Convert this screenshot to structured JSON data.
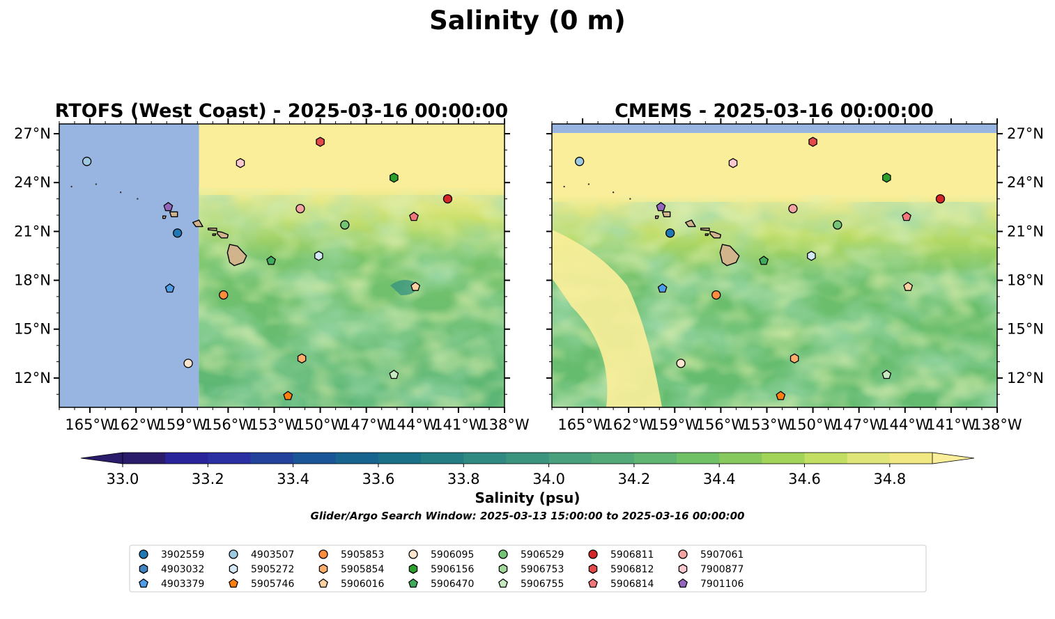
{
  "figure": {
    "title": "Salinity (0 m)",
    "panels": [
      {
        "title": "RTOFS (West Coast) - 2025-03-16 00:00:00"
      },
      {
        "title": "CMEMS - 2025-03-16 00:00:00"
      }
    ],
    "colorbar": {
      "label": "Salinity (psu)",
      "note": "Glider/Argo Search Window: 2025-03-13 15:00:00 to 2025-03-16 00:00:00",
      "ticks": [
        "33.0",
        "33.2",
        "33.4",
        "33.6",
        "33.8",
        "34.0",
        "34.2",
        "34.4",
        "34.6",
        "34.8"
      ],
      "range": [
        33.0,
        34.9
      ],
      "extend": "both",
      "colors": [
        "#2b1b6b",
        "#2a249a",
        "#2a2fa2",
        "#22429b",
        "#1a5597",
        "#17658f",
        "#1a7187",
        "#257d84",
        "#308a82",
        "#3b947e",
        "#48a07c",
        "#53aa78",
        "#60b572",
        "#70c066",
        "#88c95d",
        "#a2d459",
        "#c2de63",
        "#e0e57a",
        "#f2e883"
      ],
      "under_color": "#2b1b6b",
      "over_color": "#fbee9a"
    },
    "map": {
      "lon_range": [
        -167,
        -138
      ],
      "lat_range": [
        10.2,
        27.6
      ],
      "xticks": [
        "165°W",
        "162°W",
        "159°W",
        "156°W",
        "153°W",
        "150°W",
        "147°W",
        "144°W",
        "141°W",
        "138°W"
      ],
      "yticks": [
        "27°N",
        "24°N",
        "21°N",
        "18°N",
        "15°N",
        "12°N"
      ],
      "ocean_mask_color": "#97b5e0",
      "land_color": "#d2b48c",
      "rtofs_domain_west_edge_lon": -157.9
    },
    "legend": {
      "items": [
        {
          "id": "3902559",
          "marker": "circle",
          "color": "#1f77b4"
        },
        {
          "id": "4903032",
          "marker": "hexagon",
          "color": "#3d84c2"
        },
        {
          "id": "4903379",
          "marker": "pentagon",
          "color": "#4d9ee6"
        },
        {
          "id": "4903507",
          "marker": "circle",
          "color": "#9ecae1"
        },
        {
          "id": "5905272",
          "marker": "hexagon",
          "color": "#d4e9f8"
        },
        {
          "id": "5905746",
          "marker": "pentagon",
          "color": "#ff7f0e"
        },
        {
          "id": "5905853",
          "marker": "circle",
          "color": "#fd8d3c"
        },
        {
          "id": "5905854",
          "marker": "hexagon",
          "color": "#fdae6b"
        },
        {
          "id": "5906016",
          "marker": "pentagon",
          "color": "#fdd0a2"
        },
        {
          "id": "5906095",
          "marker": "circle",
          "color": "#fee6ce"
        },
        {
          "id": "5906156",
          "marker": "hexagon",
          "color": "#2ca02c"
        },
        {
          "id": "5906470",
          "marker": "pentagon",
          "color": "#41ab5d"
        },
        {
          "id": "5906529",
          "marker": "circle",
          "color": "#74c476"
        },
        {
          "id": "5906753",
          "marker": "hexagon",
          "color": "#a1d99b"
        },
        {
          "id": "5906755",
          "marker": "pentagon",
          "color": "#c7e9c0"
        },
        {
          "id": "5906811",
          "marker": "circle",
          "color": "#d62728"
        },
        {
          "id": "5906812",
          "marker": "hexagon",
          "color": "#e34a4a"
        },
        {
          "id": "5906814",
          "marker": "pentagon",
          "color": "#f0787a"
        },
        {
          "id": "5907061",
          "marker": "circle",
          "color": "#f4a3a3"
        },
        {
          "id": "7900877",
          "marker": "hexagon",
          "color": "#f9c9cf"
        },
        {
          "id": "7901106",
          "marker": "pentagon",
          "color": "#9467bd"
        }
      ]
    },
    "floats": [
      {
        "id": "4903507",
        "lon": -165.2,
        "lat": 25.3
      },
      {
        "id": "7901106",
        "lon": -159.9,
        "lat": 22.5
      },
      {
        "id": "3902559",
        "lon": -159.3,
        "lat": 20.9
      },
      {
        "id": "4903379",
        "lon": -159.8,
        "lat": 17.5
      },
      {
        "id": "5906095",
        "lon": -158.6,
        "lat": 12.9
      },
      {
        "id": "5905853",
        "lon": -156.3,
        "lat": 17.1
      },
      {
        "id": "7900877",
        "lon": -155.2,
        "lat": 25.2
      },
      {
        "id": "5906470",
        "lon": -153.2,
        "lat": 19.2
      },
      {
        "id": "5905746",
        "lon": -152.1,
        "lat": 10.9
      },
      {
        "id": "5907061",
        "lon": -151.3,
        "lat": 22.4
      },
      {
        "id": "5906812",
        "lon": -150.0,
        "lat": 26.5
      },
      {
        "id": "5905272",
        "lon": -150.1,
        "lat": 19.5
      },
      {
        "id": "5905854",
        "lon": -151.2,
        "lat": 13.2
      },
      {
        "id": "5906529",
        "lon": -148.4,
        "lat": 21.4
      },
      {
        "id": "5906156",
        "lon": -145.2,
        "lat": 24.3
      },
      {
        "id": "5906755",
        "lon": -145.2,
        "lat": 12.2
      },
      {
        "id": "5906814",
        "lon": -143.9,
        "lat": 21.9
      },
      {
        "id": "5906016",
        "lon": -143.8,
        "lat": 17.6
      },
      {
        "id": "5906811",
        "lon": -141.7,
        "lat": 23.0
      }
    ]
  }
}
